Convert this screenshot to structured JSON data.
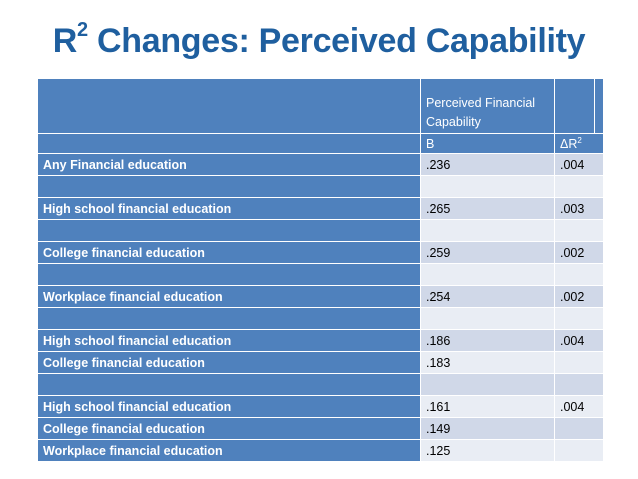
{
  "title": {
    "main": "R",
    "sup": "2",
    "rest": " Changes: Perceived Capability"
  },
  "header": {
    "col_title": "Perceived Financial Capability",
    "b_label": "B",
    "delta_label": "ΔR",
    "delta_sup": "2"
  },
  "rows": [
    {
      "label": "Any Financial education",
      "b": ".236",
      "dr2": ".004"
    },
    {
      "label": "",
      "b": "",
      "dr2": ""
    },
    {
      "label": "High school financial education",
      "b": ".265",
      "dr2": ".003"
    },
    {
      "label": "",
      "b": "",
      "dr2": ""
    },
    {
      "label": "College financial education",
      "b": ".259",
      "dr2": ".002"
    },
    {
      "label": "",
      "b": "",
      "dr2": ""
    },
    {
      "label": "Workplace financial education",
      "b": ".254",
      "dr2": ".002"
    },
    {
      "label": "",
      "b": "",
      "dr2": ""
    },
    {
      "label": "High school financial education",
      "b": ".186",
      "dr2": ".004"
    },
    {
      "label": "College financial education",
      "b": ".183",
      "dr2": ""
    },
    {
      "label": "",
      "b": "",
      "dr2": ""
    },
    {
      "label": "High school financial education",
      "b": ".161",
      "dr2": ".004"
    },
    {
      "label": "College financial education",
      "b": ".149",
      "dr2": ""
    },
    {
      "label": "Workplace financial education",
      "b": ".125",
      "dr2": ""
    }
  ]
}
